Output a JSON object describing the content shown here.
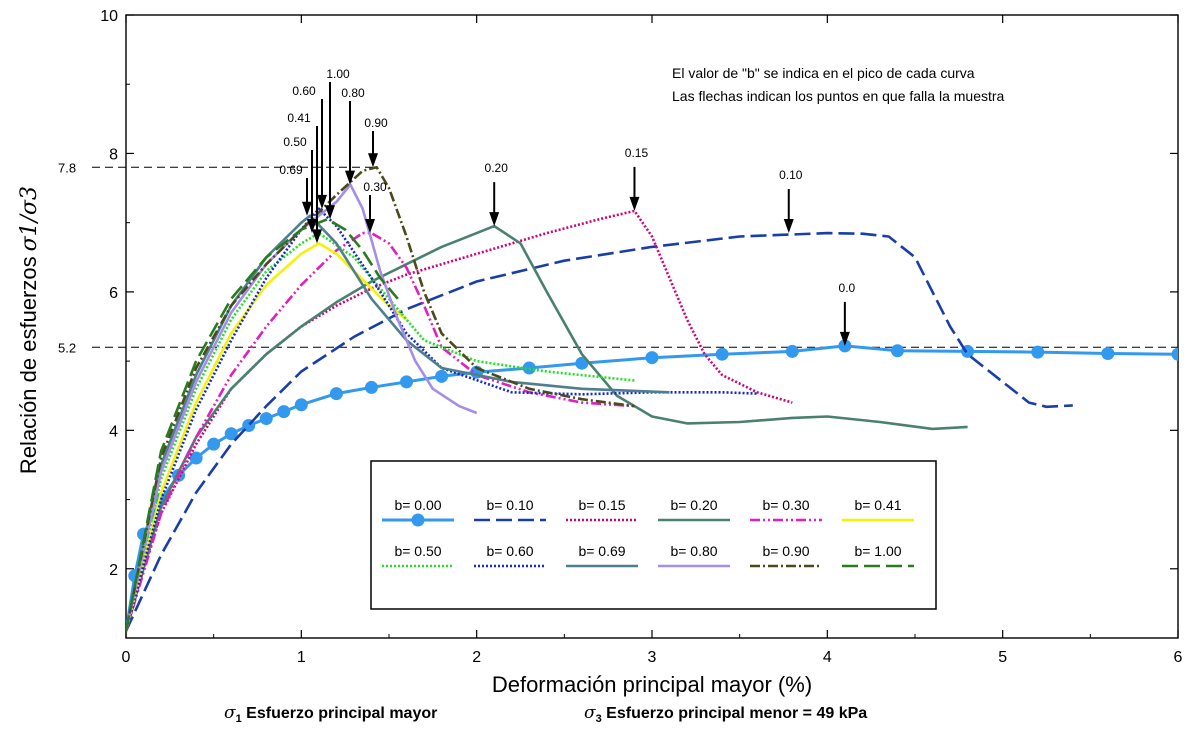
{
  "chart_data": {
    "type": "line",
    "xlabel": "Deformación principal mayor (%)",
    "ylabel": "Relación de esfuerzos",
    "ylabel_symbol": "σ1/σ3",
    "xlim": [
      0,
      6
    ],
    "ylim": [
      1,
      10
    ],
    "x_ticks": [
      "0",
      "1",
      "2",
      "3",
      "4",
      "5",
      "6"
    ],
    "y_ticks": [
      "2",
      "4",
      "6",
      "8",
      "10"
    ],
    "reference_lines": [
      {
        "label": "7.8",
        "y": 7.8,
        "x_end": 1.43
      },
      {
        "label": "5.2",
        "y": 5.2,
        "x_end": 6.0
      }
    ],
    "notes": [
      "El valor de \"b\" se indica en el pico de cada curva",
      "Las flechas indican los puntos en que falla la muestra"
    ],
    "peak_labels": [
      "0.0",
      "0.10",
      "0.15",
      "0.20",
      "0.30",
      "0.41",
      "0.50",
      "0.60",
      "0.69",
      "0.80",
      "0.90",
      "1.00"
    ],
    "series": [
      {
        "name": "b= 0.00",
        "color": "#3399ee",
        "style": "marker",
        "peak_label": "0.0",
        "arrow": [
          4.1,
          5.22
        ],
        "x": [
          0,
          0.05,
          0.1,
          0.2,
          0.3,
          0.4,
          0.5,
          0.6,
          0.7,
          0.8,
          0.9,
          1.0,
          1.2,
          1.4,
          1.6,
          1.8,
          2.0,
          2.3,
          2.6,
          3.0,
          3.4,
          3.8,
          4.1,
          4.4,
          4.8,
          5.2,
          5.6,
          6.0
        ],
        "y": [
          1.1,
          1.9,
          2.5,
          3.0,
          3.35,
          3.6,
          3.8,
          3.95,
          4.07,
          4.17,
          4.27,
          4.37,
          4.53,
          4.62,
          4.7,
          4.78,
          4.84,
          4.9,
          4.97,
          5.05,
          5.1,
          5.14,
          5.22,
          5.15,
          5.14,
          5.13,
          5.11,
          5.1
        ]
      },
      {
        "name": "b= 0.10",
        "color": "#1a3ea8",
        "style": "longdash",
        "peak_label": "0.10",
        "arrow": [
          3.78,
          6.85
        ],
        "x": [
          0,
          0.2,
          0.4,
          0.6,
          0.8,
          1.0,
          1.3,
          1.6,
          2.0,
          2.5,
          3.0,
          3.5,
          4.0,
          4.2,
          4.35,
          4.5,
          4.6,
          4.7,
          4.8,
          5.0,
          5.15,
          5.25,
          5.4
        ],
        "y": [
          1.1,
          2.2,
          3.1,
          3.8,
          4.35,
          4.85,
          5.35,
          5.75,
          6.15,
          6.45,
          6.65,
          6.8,
          6.85,
          6.84,
          6.8,
          6.5,
          6.0,
          5.5,
          5.1,
          4.7,
          4.4,
          4.34,
          4.36
        ]
      },
      {
        "name": "b= 0.15",
        "color": "#d4007a",
        "style": "dotted",
        "peak_label": "0.15",
        "arrow": [
          2.9,
          7.17
        ],
        "x": [
          0,
          0.1,
          0.2,
          0.4,
          0.6,
          0.8,
          1.0,
          1.2,
          1.4,
          1.6,
          2.0,
          2.4,
          2.7,
          2.9,
          3.0,
          3.1,
          3.2,
          3.3,
          3.4,
          3.6,
          3.8
        ],
        "y": [
          1.1,
          2.0,
          2.8,
          3.8,
          4.6,
          5.1,
          5.5,
          5.8,
          6.05,
          6.25,
          6.55,
          6.85,
          7.05,
          7.17,
          6.8,
          6.2,
          5.6,
          5.1,
          4.8,
          4.55,
          4.4
        ]
      },
      {
        "name": "b= 0.20",
        "color": "#4a8070",
        "style": "solid",
        "peak_label": "0.20",
        "arrow": [
          2.1,
          6.95
        ],
        "x": [
          0,
          0.2,
          0.4,
          0.6,
          0.8,
          1.0,
          1.2,
          1.4,
          1.6,
          1.8,
          2.0,
          2.1,
          2.25,
          2.4,
          2.6,
          2.8,
          3.0,
          3.2,
          3.5,
          3.8,
          4.0,
          4.3,
          4.6,
          4.8
        ],
        "y": [
          1.1,
          2.9,
          3.9,
          4.6,
          5.1,
          5.5,
          5.85,
          6.15,
          6.4,
          6.65,
          6.85,
          6.95,
          6.7,
          6.0,
          5.1,
          4.5,
          4.2,
          4.1,
          4.12,
          4.18,
          4.2,
          4.12,
          4.02,
          4.05
        ]
      },
      {
        "name": "b= 0.30",
        "color": "#e01fc0",
        "style": "dashdotdot",
        "peak_label": "0.30",
        "arrow": [
          1.4,
          6.85
        ],
        "x": [
          0,
          0.2,
          0.4,
          0.6,
          0.8,
          1.0,
          1.2,
          1.35,
          1.4,
          1.5,
          1.6,
          1.7,
          1.8,
          2.0,
          2.3,
          2.6,
          2.9
        ],
        "y": [
          1.1,
          2.8,
          3.9,
          4.8,
          5.5,
          6.1,
          6.6,
          6.85,
          6.85,
          6.7,
          6.35,
          5.8,
          5.2,
          4.8,
          4.55,
          4.4,
          4.35
        ]
      },
      {
        "name": "b= 0.41",
        "color": "#f2f20a",
        "style": "solid",
        "peak_label": "0.41",
        "arrow": [
          1.1,
          6.7
        ],
        "x": [
          0,
          0.2,
          0.4,
          0.6,
          0.8,
          1.0,
          1.1,
          1.2,
          1.3,
          1.4,
          1.5,
          1.6
        ],
        "y": [
          1.1,
          3.1,
          4.4,
          5.4,
          6.1,
          6.55,
          6.7,
          6.55,
          6.3,
          6.05,
          5.8,
          5.6
        ]
      },
      {
        "name": "b= 0.50",
        "color": "#22e022",
        "style": "dotted",
        "peak_label": "0.50",
        "arrow": [
          1.1,
          6.85
        ],
        "x": [
          0,
          0.2,
          0.4,
          0.6,
          0.8,
          1.0,
          1.1,
          1.3,
          1.5,
          1.7,
          2.0,
          2.4,
          2.9
        ],
        "y": [
          1.1,
          3.3,
          4.6,
          5.6,
          6.3,
          6.7,
          6.85,
          6.5,
          5.9,
          5.3,
          5.0,
          4.85,
          4.72
        ]
      },
      {
        "name": "b= 0.60",
        "color": "#1428cc",
        "style": "dotted",
        "peak_label": "0.60",
        "arrow": [
          1.1,
          7.2
        ],
        "x": [
          0,
          0.2,
          0.4,
          0.6,
          0.8,
          1.0,
          1.1,
          1.2,
          1.4,
          1.6,
          1.8,
          2.2,
          2.6,
          3.0,
          3.4,
          3.6
        ],
        "y": [
          1.1,
          3.0,
          4.3,
          5.3,
          6.2,
          6.9,
          7.2,
          6.95,
          6.2,
          5.4,
          4.9,
          4.55,
          4.52,
          4.55,
          4.55,
          4.53
        ]
      },
      {
        "name": "b= 0.69",
        "color": "#4f7f8f",
        "style": "solid",
        "peak_label": "0.69",
        "arrow": [
          1.05,
          7.1
        ],
        "x": [
          0,
          0.2,
          0.4,
          0.6,
          0.8,
          1.0,
          1.05,
          1.2,
          1.4,
          1.6,
          1.8,
          2.2,
          2.6,
          3.1
        ],
        "y": [
          1.1,
          3.5,
          4.8,
          5.8,
          6.5,
          7.0,
          7.1,
          6.7,
          5.9,
          5.3,
          4.9,
          4.7,
          4.6,
          4.55
        ]
      },
      {
        "name": "b= 0.80",
        "color": "#a58de8",
        "style": "solid",
        "peak_label": "0.80",
        "arrow": [
          1.28,
          7.55
        ],
        "x": [
          0,
          0.2,
          0.4,
          0.6,
          0.8,
          1.0,
          1.2,
          1.28,
          1.35,
          1.45,
          1.55,
          1.65,
          1.75,
          1.9,
          2.0
        ],
        "y": [
          1.1,
          3.4,
          4.7,
          5.7,
          6.4,
          6.9,
          7.3,
          7.55,
          7.2,
          6.3,
          5.6,
          5.0,
          4.6,
          4.35,
          4.25
        ]
      },
      {
        "name": "b= 0.90",
        "color": "#4a4a1a",
        "style": "dashdot",
        "peak_label": "0.90",
        "arrow": [
          1.43,
          7.8
        ],
        "x": [
          0,
          0.2,
          0.4,
          0.6,
          0.8,
          1.0,
          1.2,
          1.35,
          1.43,
          1.5,
          1.6,
          1.7,
          1.8,
          2.0,
          2.3,
          2.6,
          2.9
        ],
        "y": [
          1.1,
          3.6,
          4.9,
          5.8,
          6.4,
          6.9,
          7.4,
          7.75,
          7.8,
          7.5,
          6.8,
          6.0,
          5.4,
          4.9,
          4.6,
          4.45,
          4.35
        ]
      },
      {
        "name": "b= 1.00",
        "color": "#2a7a1e",
        "style": "longdash",
        "peak_label": "1.00",
        "arrow": [
          1.15,
          7.05
        ],
        "x": [
          0,
          0.2,
          0.4,
          0.6,
          0.8,
          1.0,
          1.15,
          1.25,
          1.35,
          1.45,
          1.55
        ],
        "y": [
          1.1,
          3.7,
          5.0,
          5.9,
          6.5,
          6.9,
          7.05,
          6.9,
          6.6,
          6.2,
          5.9
        ]
      }
    ]
  }
}
